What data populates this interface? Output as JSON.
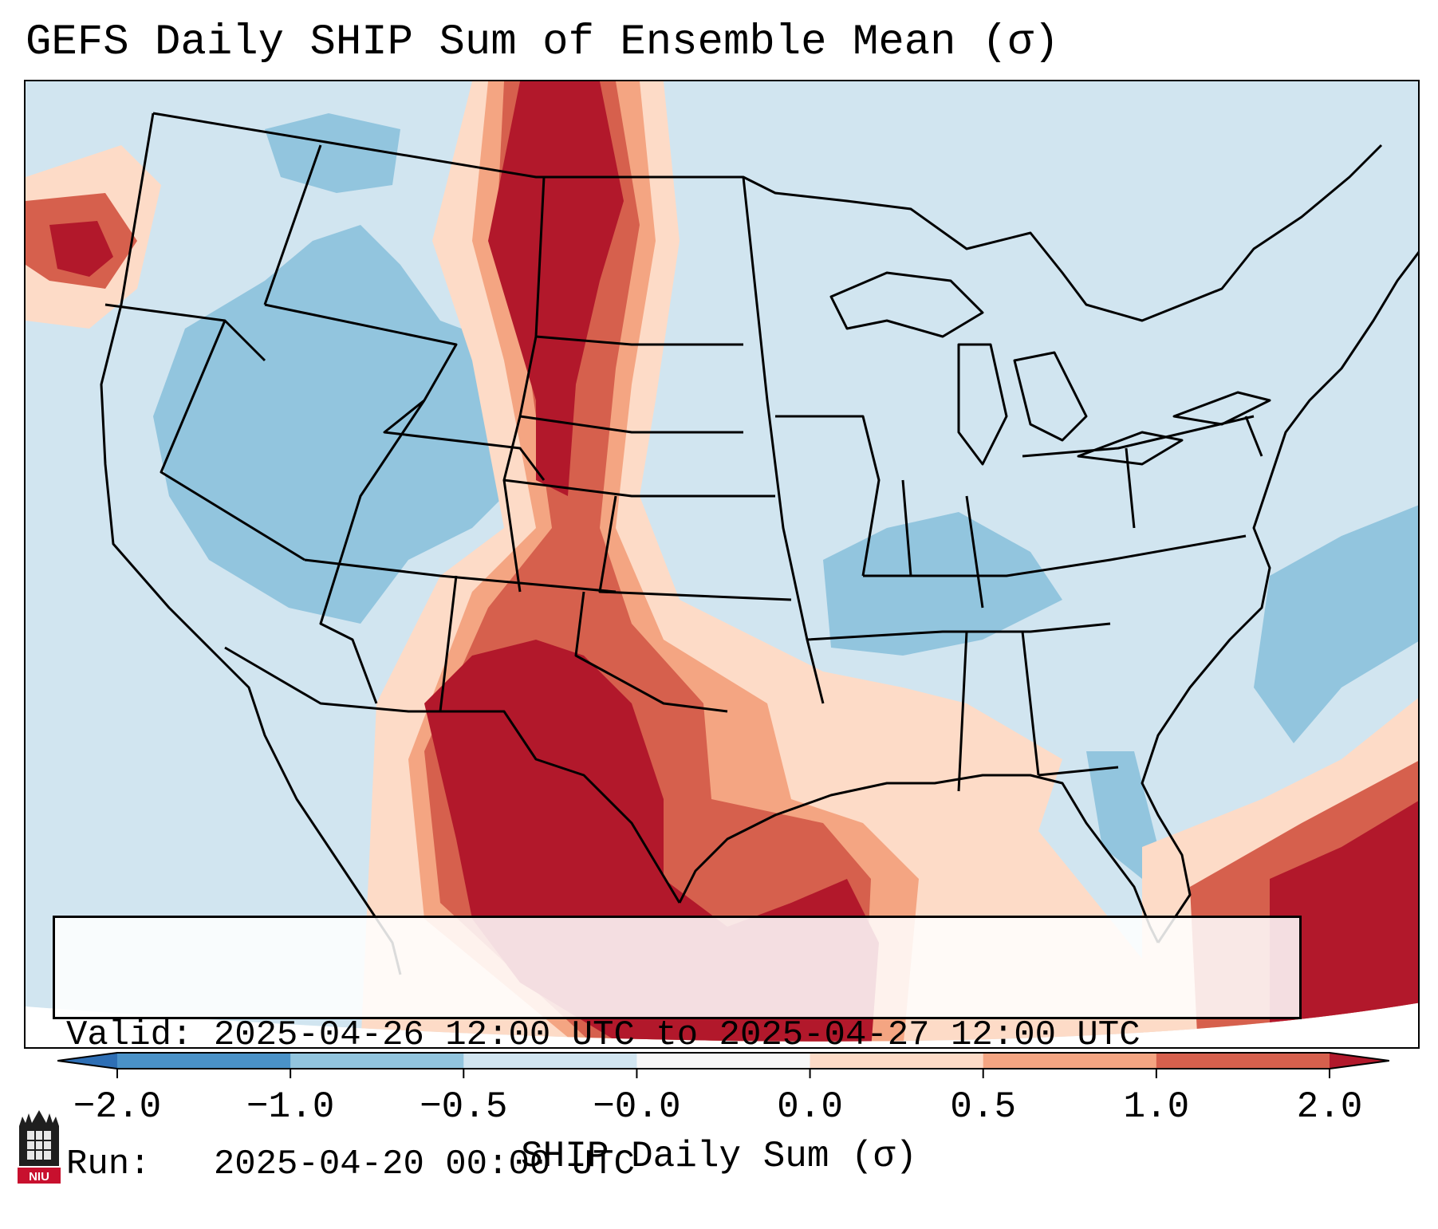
{
  "title": "GEFS Daily SHIP Sum of Ensemble Mean (σ)",
  "info": {
    "valid_line": "Valid: 2025-04-26 12:00 UTC to 2025-04-27 12:00 UTC",
    "run_line": "Run:   2025-04-20 00:00 UTC"
  },
  "colorbar": {
    "label": "SHIP Daily Sum (σ)",
    "ticks": [
      "−2.0",
      "−1.0",
      "−0.5",
      "−0.0",
      "0.0",
      "0.5",
      "1.0",
      "2.0"
    ],
    "bins": [
      {
        "range": "< -2.0",
        "color": "#2e6fb5"
      },
      {
        "range": "-2.0 to -1.0",
        "color": "#4a92c8"
      },
      {
        "range": "-1.0 to -0.5",
        "color": "#92c5de"
      },
      {
        "range": "-0.5 to -0.0",
        "color": "#d1e5f0"
      },
      {
        "range": "-0.0 to 0.0",
        "color": "#f7f7f7"
      },
      {
        "range": "0.0 to 0.5",
        "color": "#fddbc7"
      },
      {
        "range": "0.5 to 1.0",
        "color": "#f4a582"
      },
      {
        "range": "1.0 to 2.0",
        "color": "#d6604d"
      },
      {
        "range": "> 2.0",
        "color": "#b2182b"
      }
    ]
  },
  "logo": {
    "text": "NIU",
    "icon": "niu-logo-icon"
  }
}
